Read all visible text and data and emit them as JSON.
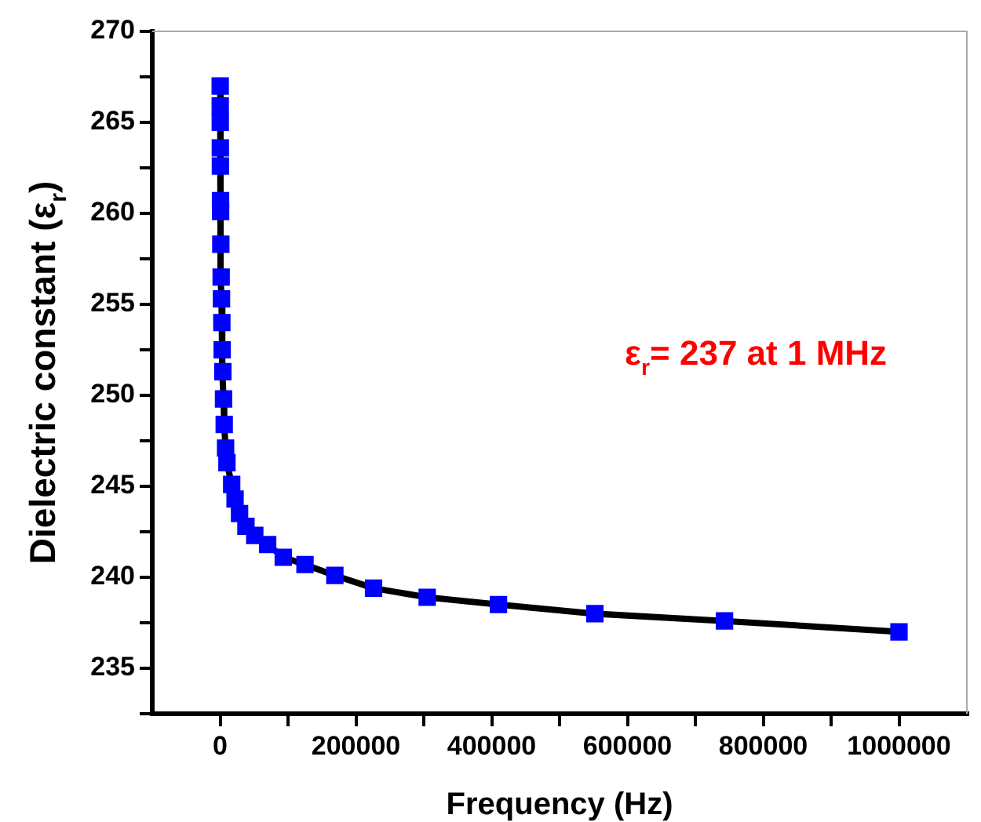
{
  "chart_data": {
    "type": "line",
    "xlabel": "Frequency (Hz)",
    "ylabel": "Dielectric constant (ε$_{r}$)",
    "annotations": [
      "ε$_{r}$= 237 at 1 MHz"
    ],
    "x": [
      100,
      150,
      200,
      300,
      400,
      600,
      700,
      1000,
      1500,
      2000,
      2500,
      3000,
      4000,
      5000,
      6000,
      8000,
      10000,
      17000,
      22000,
      28600,
      38000,
      51000,
      70000,
      93000,
      125000,
      169000,
      226000,
      305000,
      410000,
      552000,
      743000,
      1000000
    ],
    "series": [
      {
        "color": "#0000ff",
        "values": [
          267.0,
          265.9,
          265.0,
          263.6,
          262.6,
          260.7,
          260.1,
          258.3,
          256.5,
          255.3,
          254.0,
          252.5,
          251.3,
          249.8,
          248.4,
          247.1,
          246.3,
          245.1,
          244.3,
          243.5,
          242.8,
          242.3,
          241.8,
          241.1,
          240.7,
          240.1,
          239.4,
          238.9,
          238.5,
          238.0,
          237.6,
          237.0
        ]
      }
    ],
    "xlim": [
      -100000,
      1100000
    ],
    "ylim": [
      232.5,
      270
    ],
    "xticks": [
      0,
      {
        "value": 100000,
        "label": null
      },
      200000,
      {
        "value": 300000,
        "label": null
      },
      400000,
      {
        "value": 500000,
        "label": null
      },
      600000,
      {
        "value": 700000,
        "label": null
      },
      800000,
      {
        "value": 900000,
        "label": null
      },
      1000000
    ],
    "yticks": [
      {
        "value": 232.5,
        "label": null
      },
      235,
      {
        "value": 237.5,
        "label": null
      },
      240,
      {
        "value": 242.5,
        "label": null
      },
      245,
      {
        "value": 247.5,
        "label": null
      },
      250,
      {
        "value": 252.5,
        "label": null
      },
      255,
      {
        "value": 257.5,
        "label": null
      },
      260,
      {
        "value": 262.5,
        "label": null
      },
      265,
      {
        "value": 267.5,
        "label": null
      },
      270
    ],
    "grid": false,
    "legend": false,
    "marker": "square",
    "line_style": "solid"
  }
}
